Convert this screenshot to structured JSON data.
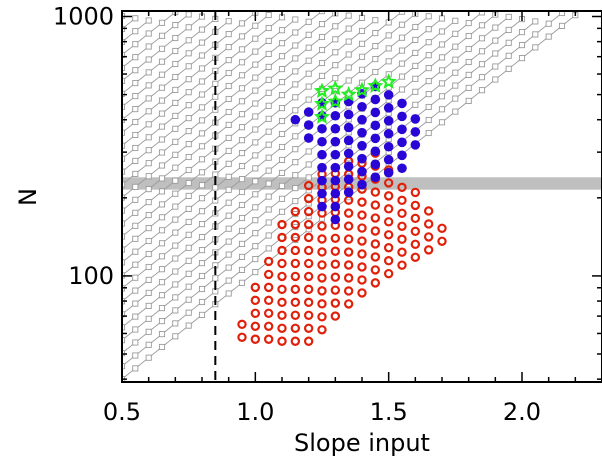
{
  "chart_data": {
    "type": "scatter",
    "xlabel": "Slope input",
    "ylabel": "N",
    "xlim": [
      0.5,
      2.3
    ],
    "ylim": [
      39,
      1050
    ],
    "y_scale": "log",
    "x_ticks": [
      "0.5",
      "1.0",
      "1.5",
      "2.0"
    ],
    "y_ticks": [
      "100",
      "1000"
    ],
    "vertical_line_x": 0.85,
    "horizontal_band_y": [
      215,
      240
    ],
    "colors": {
      "grid_track": "#9a9a9a",
      "band": "#b4b4b4",
      "open_red": "#e0200a",
      "filled_blue": "#2a06d6",
      "star_green": "#22ee22"
    },
    "series": [
      {
        "marker": "open-square",
        "color": "#9a9a9a",
        "tracks": "grid of tracks from N=40 to N=1000 (spacing 0.05 in slope)",
        "slope_range": [
          0.5,
          2.3
        ]
      },
      {
        "marker": "open-circle",
        "color": "#e0200a",
        "x": [
          0.95,
          1.0,
          1.05,
          1.1,
          1.15,
          1.2,
          1.25,
          1.3,
          1.35,
          1.4,
          1.45,
          1.5,
          1.55,
          1.6,
          1.65,
          1.7
        ],
        "y_ranges": [
          [
            58,
            72
          ],
          [
            57,
            93
          ],
          [
            57,
            123
          ],
          [
            56,
            165
          ],
          [
            56,
            195
          ],
          [
            56,
            225
          ],
          [
            62,
            248
          ],
          [
            70,
            272
          ],
          [
            78,
            285
          ],
          [
            86,
            295
          ],
          [
            94,
            305
          ],
          [
            102,
            270
          ],
          [
            110,
            240
          ],
          [
            118,
            215
          ],
          [
            126,
            195
          ],
          [
            136,
            155
          ]
        ]
      },
      {
        "marker": "filled-circle",
        "color": "#2a06d6",
        "x": [
          1.15,
          1.2,
          1.25,
          1.3,
          1.35,
          1.4,
          1.45,
          1.5,
          1.55,
          1.6
        ],
        "y_ranges": [
          [
            400,
            400
          ],
          [
            340,
            440
          ],
          [
            185,
            470
          ],
          [
            165,
            490
          ],
          [
            210,
            510
          ],
          [
            225,
            530
          ],
          [
            240,
            545
          ],
          [
            250,
            555
          ],
          [
            260,
            485
          ],
          [
            320,
            420
          ]
        ]
      },
      {
        "marker": "star",
        "color": "#22ee22",
        "x": [
          1.25,
          1.3,
          1.35,
          1.4,
          1.45,
          1.5
        ],
        "y_ranges": [
          [
            410,
            530
          ],
          [
            470,
            545
          ],
          [
            500,
            555
          ],
          [
            520,
            560
          ],
          [
            540,
            570
          ],
          [
            560,
            575
          ]
        ]
      }
    ]
  }
}
